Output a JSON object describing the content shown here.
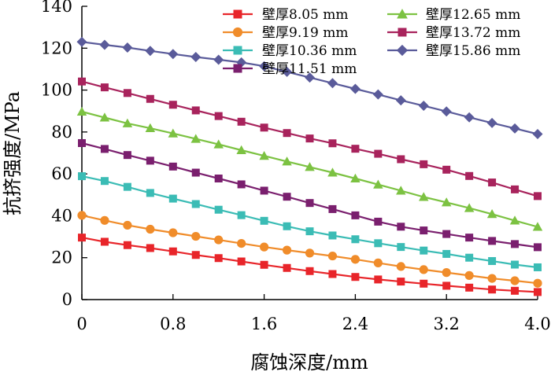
{
  "chart_data": {
    "type": "line",
    "title": "",
    "xlabel": "腐蚀深度/mm",
    "ylabel": "抗挤强度/MPa",
    "xlim": [
      0,
      4.0
    ],
    "ylim": [
      0,
      140
    ],
    "xticks": [
      0,
      0.8,
      1.6,
      2.4,
      3.2,
      4.0
    ],
    "xtick_labels": [
      "0",
      "0.8",
      "1.6",
      "2.4",
      "3.2",
      "4.0"
    ],
    "yticks": [
      0,
      20,
      40,
      60,
      80,
      100,
      120,
      140
    ],
    "ytick_labels": [
      "0",
      "20",
      "40",
      "60",
      "80",
      "100",
      "120",
      "140"
    ],
    "legend_position": "top-right",
    "x": [
      0,
      0.2,
      0.4,
      0.6,
      0.8,
      1.0,
      1.2,
      1.4,
      1.6,
      1.8,
      2.0,
      2.2,
      2.4,
      2.6,
      2.8,
      3.0,
      3.2,
      3.4,
      3.6,
      3.8,
      4.0
    ],
    "series": [
      {
        "name": "壁厚8.05 mm",
        "color": "#e8252a",
        "marker": "square",
        "values": [
          29.6,
          27.6,
          26.0,
          24.6,
          23.0,
          21.3,
          19.8,
          18.2,
          16.6,
          15.1,
          13.6,
          12.2,
          10.8,
          9.6,
          8.6,
          7.6,
          6.6,
          5.7,
          4.8,
          4.2,
          3.6
        ]
      },
      {
        "name": "壁厚9.19 mm",
        "color": "#f08c2a",
        "marker": "circle",
        "values": [
          40.2,
          37.8,
          35.5,
          33.6,
          31.9,
          30.2,
          28.5,
          26.8,
          25.1,
          23.6,
          22.2,
          20.8,
          19.2,
          17.5,
          15.8,
          14.3,
          12.9,
          11.5,
          10.1,
          9.0,
          7.8
        ]
      },
      {
        "name": "壁厚10.36 mm",
        "color": "#3bbcb5",
        "marker": "square",
        "values": [
          58.9,
          56.6,
          53.8,
          50.9,
          48.2,
          45.6,
          42.9,
          40.3,
          37.6,
          35.0,
          32.6,
          30.6,
          28.8,
          26.9,
          25.1,
          23.4,
          21.8,
          20.0,
          18.4,
          16.7,
          15.4
        ]
      },
      {
        "name": "壁厚11.51 mm",
        "color": "#7a1f6e",
        "marker": "square",
        "values": [
          74.7,
          71.9,
          69.0,
          66.3,
          63.5,
          60.6,
          57.8,
          55.0,
          52.0,
          49.1,
          46.1,
          43.2,
          40.2,
          37.2,
          34.8,
          33.0,
          31.3,
          29.6,
          28.0,
          26.5,
          25.0
        ]
      },
      {
        "name": "壁厚12.65 mm",
        "color": "#7cc242",
        "marker": "triangle",
        "values": [
          89.7,
          86.9,
          84.1,
          81.8,
          79.3,
          76.7,
          74.1,
          71.3,
          68.6,
          65.9,
          63.3,
          60.6,
          57.8,
          54.9,
          52.0,
          49.0,
          46.4,
          43.7,
          40.8,
          37.7,
          34.7
        ]
      },
      {
        "name": "壁厚13.72 mm",
        "color": "#a8235c",
        "marker": "square",
        "values": [
          104.1,
          101.3,
          98.6,
          95.8,
          93.0,
          90.3,
          87.6,
          84.9,
          82.1,
          79.5,
          76.9,
          74.6,
          72.0,
          69.6,
          67.0,
          64.6,
          62.0,
          59.0,
          55.9,
          52.6,
          49.4
        ]
      },
      {
        "name": "壁厚15.86 mm",
        "color": "#5a5b9a",
        "marker": "diamond",
        "values": [
          123.0,
          121.6,
          120.3,
          118.7,
          117.2,
          115.8,
          114.5,
          113.2,
          111.4,
          108.7,
          106.0,
          103.3,
          100.6,
          97.9,
          95.1,
          92.5,
          89.8,
          87.0,
          84.3,
          81.7,
          79.0
        ]
      }
    ]
  }
}
